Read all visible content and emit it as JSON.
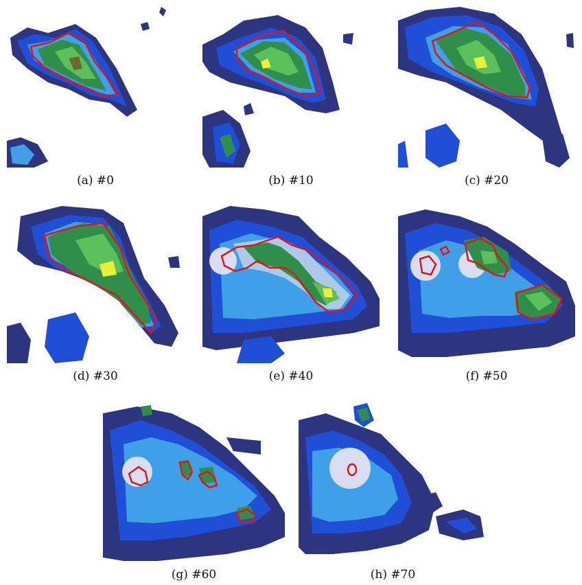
{
  "figure": {
    "panels": [
      {
        "id": "a",
        "caption": "(a) #0"
      },
      {
        "id": "b",
        "caption": "(b) #10"
      },
      {
        "id": "c",
        "caption": "(c) #20"
      },
      {
        "id": "d",
        "caption": "(d) #30"
      },
      {
        "id": "e",
        "caption": "(e) #40"
      },
      {
        "id": "f",
        "caption": "(f) #50"
      },
      {
        "id": "g",
        "caption": "(g) #60"
      },
      {
        "id": "h",
        "caption": "(h) #70"
      }
    ]
  },
  "colors": {
    "field_outer": "#2e3580",
    "field_blue": "#1f4fd6",
    "field_cyan": "#3fa0e8",
    "field_light": "#aec8ea",
    "field_green": "#2f8f4a",
    "field_green_light": "#5cc05a",
    "field_olive": "#6b6a2e",
    "field_yellow": "#e8f03c",
    "contour": "#e0141a",
    "halo": "#d8def0"
  }
}
